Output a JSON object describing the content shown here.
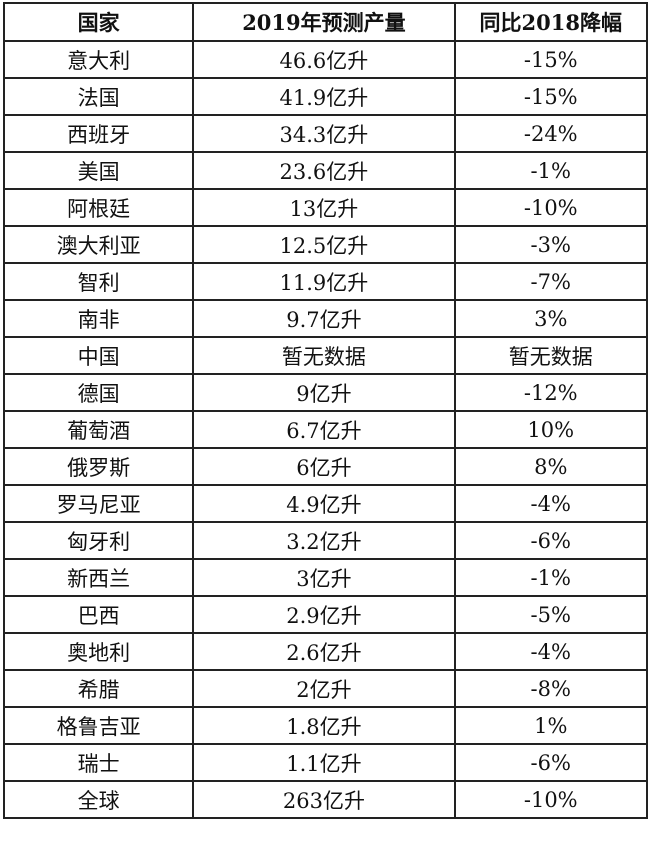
{
  "table": {
    "headers": [
      "国家",
      "2019年预测产量",
      "同比2018降幅"
    ],
    "rows": [
      [
        "意大利",
        "46.6亿升",
        "-15%"
      ],
      [
        "法国",
        "41.9亿升",
        "-15%"
      ],
      [
        "西班牙",
        "34.3亿升",
        "-24%"
      ],
      [
        "美国",
        "23.6亿升",
        "-1%"
      ],
      [
        "阿根廷",
        "13亿升",
        "-10%"
      ],
      [
        "澳大利亚",
        "12.5亿升",
        "-3%"
      ],
      [
        "智利",
        "11.9亿升",
        "-7%"
      ],
      [
        "南非",
        "9.7亿升",
        "3%"
      ],
      [
        "中国",
        "暂无数据",
        "暂无数据"
      ],
      [
        "德国",
        "9亿升",
        "-12%"
      ],
      [
        "葡萄酒",
        "6.7亿升",
        "10%"
      ],
      [
        "俄罗斯",
        "6亿升",
        "8%"
      ],
      [
        "罗马尼亚",
        "4.9亿升",
        "-4%"
      ],
      [
        "匈牙利",
        "3.2亿升",
        "-6%"
      ],
      [
        "新西兰",
        "3亿升",
        "-1%"
      ],
      [
        "巴西",
        "2.9亿升",
        "-5%"
      ],
      [
        "奥地利",
        "2.6亿升",
        "-4%"
      ],
      [
        "希腊",
        "2亿升",
        "-8%"
      ],
      [
        "格鲁吉亚",
        "1.8亿升",
        "1%"
      ],
      [
        "瑞士",
        "1.1亿升",
        "-6%"
      ],
      [
        "全球",
        "263亿升",
        "-10%"
      ]
    ]
  }
}
